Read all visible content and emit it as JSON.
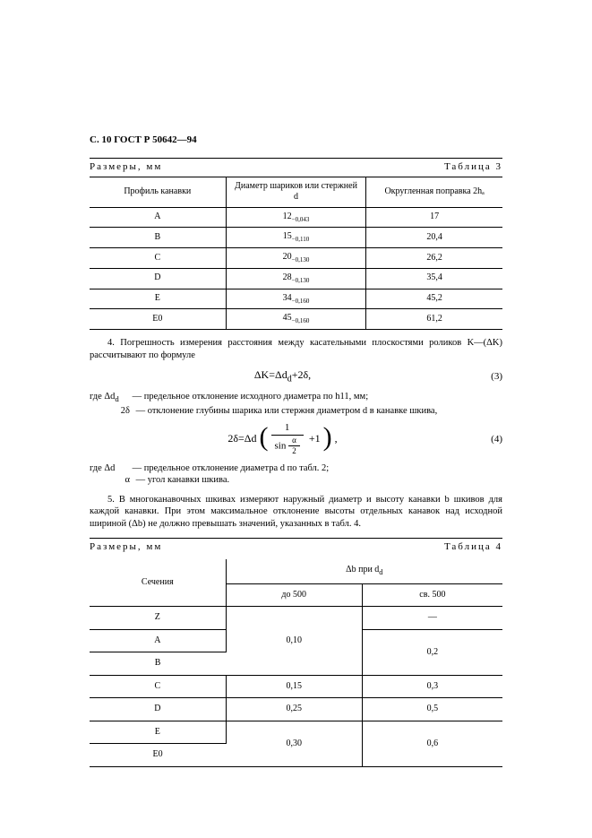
{
  "page_header": "С. 10 ГОСТ Р 50642—94",
  "table3": {
    "caption_left": "Размеры, мм",
    "caption_right": "Таблица 3",
    "header": {
      "col1": "Профиль канавки",
      "col2": "Диаметр шариков или стержней d",
      "col3": "Округленная поправка 2hₐ"
    },
    "rows": [
      {
        "profile": "A",
        "diameter_base": "12",
        "diameter_tol": "−0,043",
        "correction": "17"
      },
      {
        "profile": "B",
        "diameter_base": "15",
        "diameter_tol": "−0,110",
        "correction": "20,4"
      },
      {
        "profile": "C",
        "diameter_base": "20",
        "diameter_tol": "−0,130",
        "correction": "26,2"
      },
      {
        "profile": "D",
        "diameter_base": "28",
        "diameter_tol": "−0,130",
        "correction": "35,4"
      },
      {
        "profile": "E",
        "diameter_base": "34",
        "diameter_tol": "−0,160",
        "correction": "45,2"
      },
      {
        "profile": "E0",
        "diameter_base": "45",
        "diameter_tol": "−0,160",
        "correction": "61,2"
      }
    ]
  },
  "para4": "4. Погрешность измерения расстояния между касательными плоскостями роликов K—(ΔK) рассчитывают по формуле",
  "formula3": {
    "expr": "ΔK = Δd_d + 2δ,",
    "num": "(3)"
  },
  "where1": {
    "t1": "где Δd_d",
    "d1": "— предельное отклонение исходного диаметра по h11, мм;",
    "t2": "2δ",
    "d2": "— отклонение глубины шарика или стержня диаметром d в канавке шкива,"
  },
  "formula4": {
    "prefix": "2δ = Δd",
    "one": "1",
    "sin": "sin",
    "alpha": "α",
    "two": "2",
    "plus1": "+1",
    "num": "(4)"
  },
  "where2": {
    "t1": "где Δd",
    "d1": "— предельное отклонение диаметра d по табл. 2;",
    "t2": "α",
    "d2": "— угол канавки шкива."
  },
  "para5": "5. В многоканавочных шкивах измеряют наружный диаметр и высоту канавки b шкивов для каждой канавки. При этом максимальное отклонение высоты отдельных канавок над исходной шириной (Δb) не должно превышать значений, указанных в табл. 4.",
  "table4": {
    "caption_left": "Размеры, мм",
    "caption_right": "Таблица 4",
    "header": {
      "col1": "Сечения",
      "col2_span": "Δb при d_d",
      "col2a": "до 500",
      "col2b": "св. 500"
    },
    "rows": [
      {
        "section": "Z",
        "v1": "",
        "v2": "—"
      },
      {
        "section": "A",
        "v1": "0,10",
        "v2": ""
      },
      {
        "section": "B",
        "v1": "",
        "v2": "0,2"
      },
      {
        "section": "C",
        "v1": "0,15",
        "v2": "0,3"
      },
      {
        "section": "D",
        "v1": "0,25",
        "v2": "0,5"
      },
      {
        "section": "E",
        "v1": "",
        "v2": ""
      },
      {
        "section": "E0",
        "v1": "0,30",
        "v2": "0,6"
      }
    ]
  }
}
